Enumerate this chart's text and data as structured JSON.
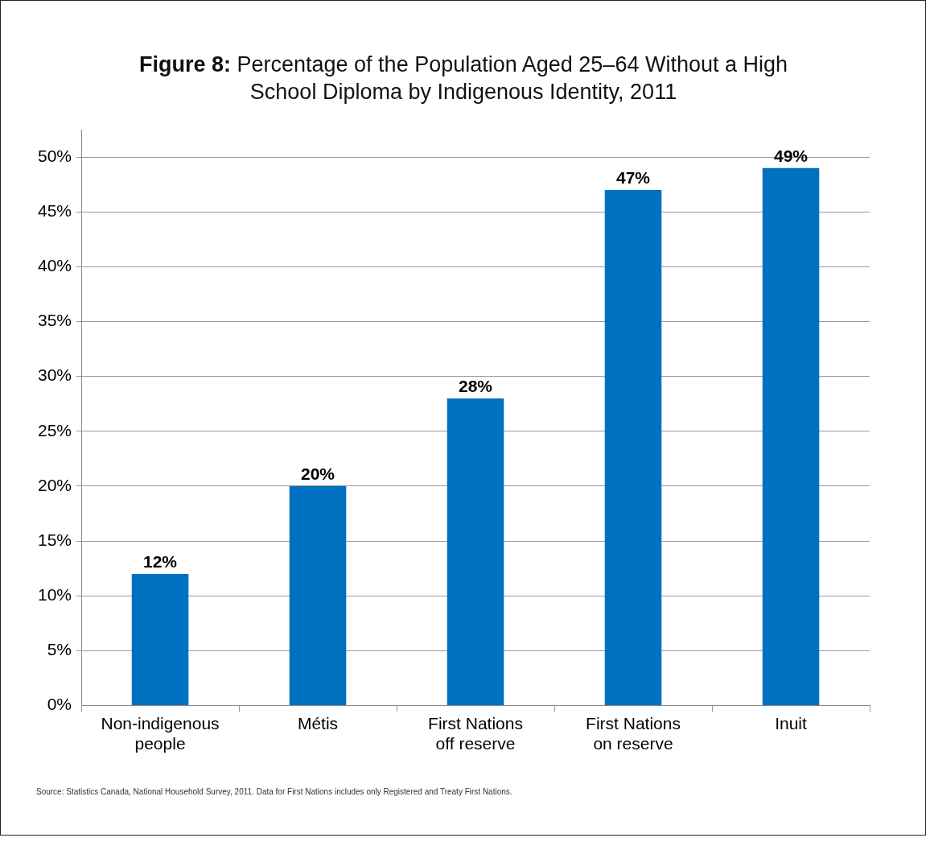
{
  "chart_data": {
    "type": "bar",
    "title": "Figure 8: Percentage of the Population Aged 25–64 Without a High School Diploma by Indigenous Identity, 2011",
    "categories": [
      "Non-indigenous people",
      "Métis",
      "First Nations off reserve",
      "First Nations on reserve",
      "Inuit"
    ],
    "values": [
      12,
      20,
      28,
      47,
      49
    ],
    "value_labels": [
      "12%",
      "20%",
      "28%",
      "47%",
      "49%"
    ],
    "color": "#0070c0",
    "ylim": [
      0,
      52.5
    ],
    "yticks": [
      {
        "value": 0,
        "label": "0%"
      },
      {
        "value": 5,
        "label": "5%"
      },
      {
        "value": 10,
        "label": "10%"
      },
      {
        "value": 15,
        "label": "15%"
      },
      {
        "value": 20,
        "label": "20%"
      },
      {
        "value": 25,
        "label": "25%"
      },
      {
        "value": 30,
        "label": "30%"
      },
      {
        "value": 35,
        "label": "35%"
      },
      {
        "value": 40,
        "label": "40%"
      },
      {
        "value": 45,
        "label": "45%"
      },
      {
        "value": 50,
        "label": "50%"
      }
    ],
    "grid": "y",
    "annotations": [
      "Source: Statistics Canada, National Household Survey, 2011. Data for First Nations includes only Registered and Treaty First Nations."
    ]
  }
}
